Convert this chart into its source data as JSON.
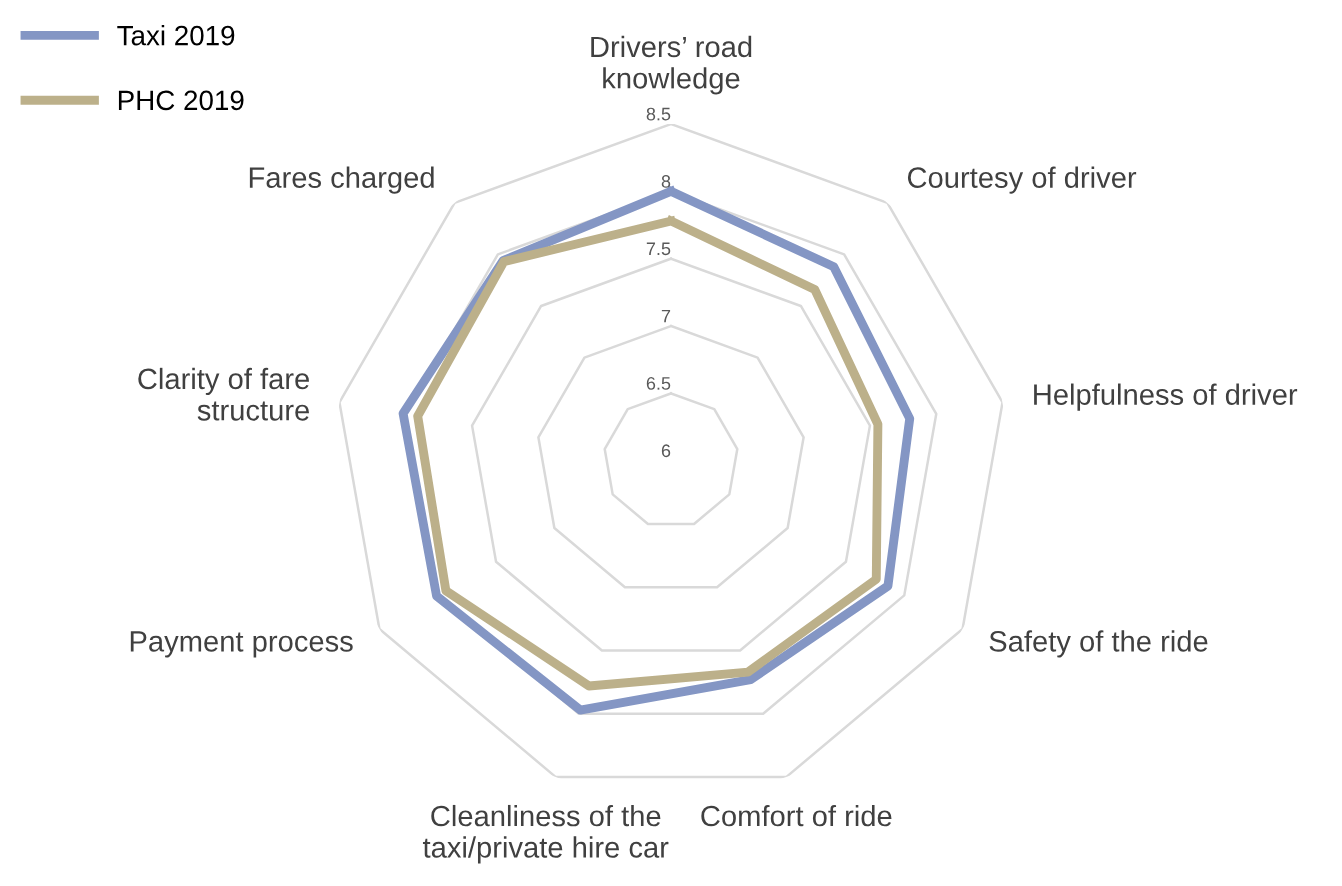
{
  "chart_data": {
    "type": "radar",
    "categories": [
      "Drivers’ road knowledge",
      "Courtesy of driver",
      "Helpfulness of driver",
      "Safety of the ride",
      "Comfort of ride",
      "Cleanliness of the taxi/private hire car",
      "Payment process",
      "Clarity of fare structure",
      "Fares charged"
    ],
    "series": [
      {
        "name": "Taxi 2019",
        "color": "#8496c4",
        "values": [
          8.0,
          7.88,
          7.8,
          7.86,
          7.73,
          7.97,
          8.01,
          8.02,
          7.94
        ]
      },
      {
        "name": "PHC 2019",
        "color": "#bcb08a",
        "values": [
          7.78,
          7.66,
          7.56,
          7.76,
          7.67,
          7.78,
          7.93,
          7.91,
          7.93
        ]
      }
    ],
    "ylim": [
      6,
      8.5
    ],
    "yticks": [
      6,
      6.5,
      7,
      7.5,
      8,
      8.5
    ],
    "grid": true,
    "legend": "top left",
    "marker": "none"
  }
}
